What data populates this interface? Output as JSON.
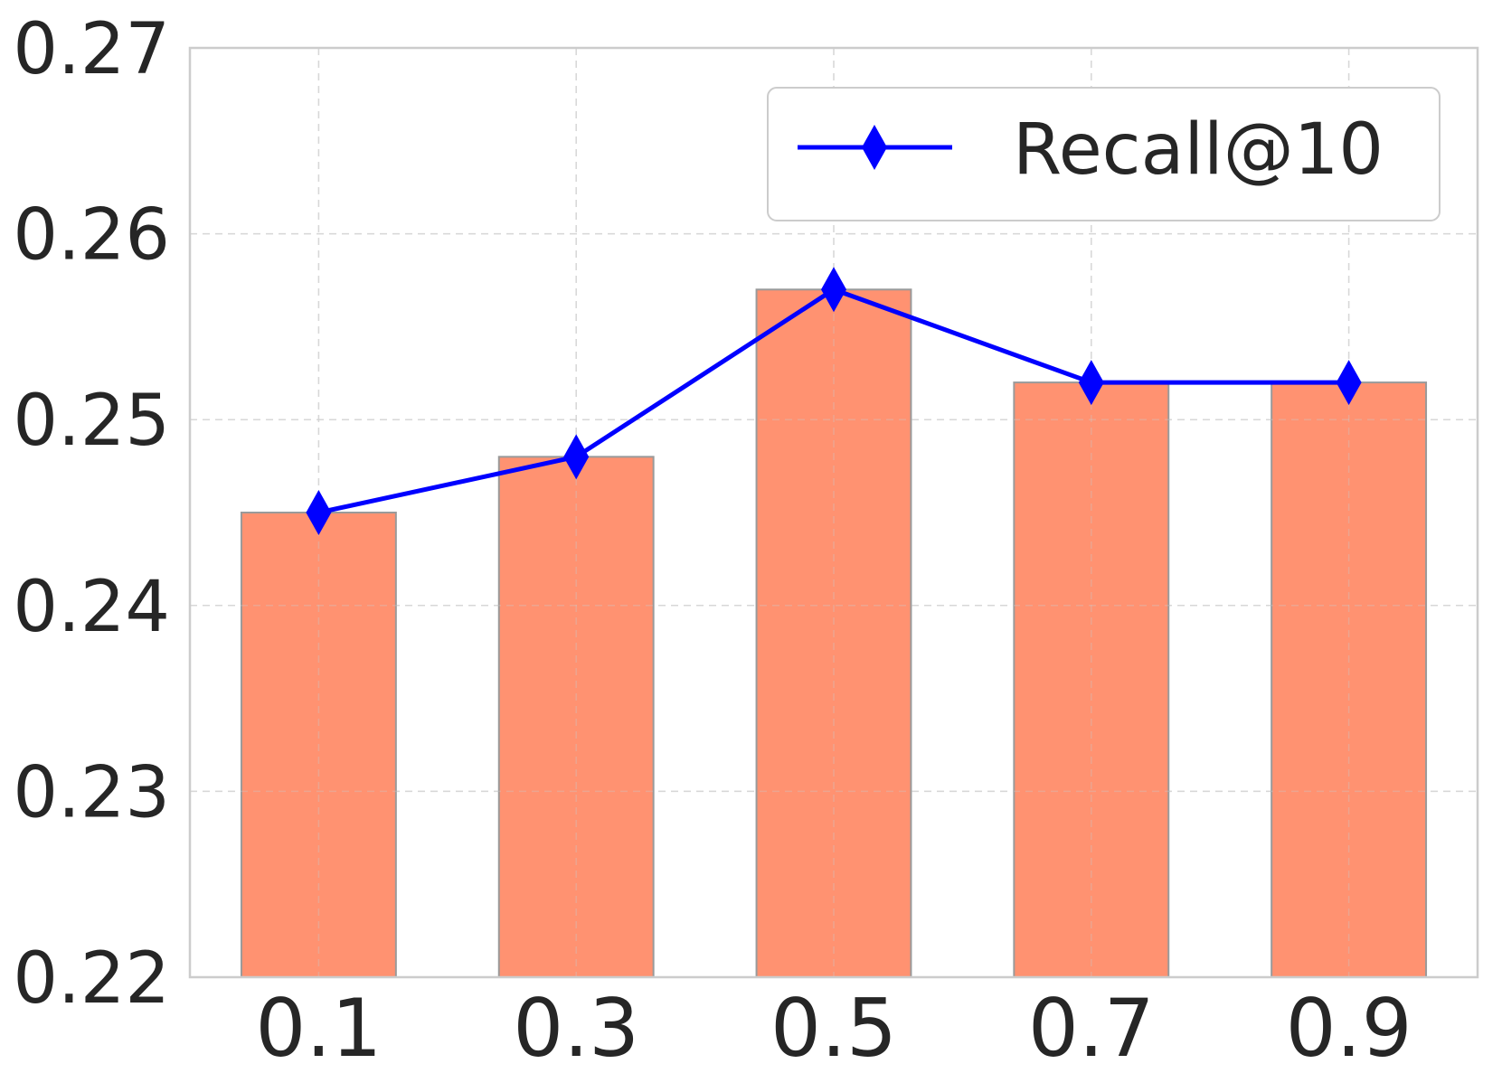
{
  "chart_data": {
    "type": "bar",
    "categories": [
      "0.1",
      "0.3",
      "0.5",
      "0.7",
      "0.9"
    ],
    "series": [
      {
        "name": "Recall@10",
        "render": "line",
        "marker": "diamond",
        "color": "#0000FF",
        "values": [
          0.245,
          0.248,
          0.257,
          0.252,
          0.252
        ]
      }
    ],
    "bars": {
      "color": "#FF8C69",
      "edge_color": "#9A9A9A",
      "values": [
        0.245,
        0.248,
        0.257,
        0.252,
        0.252
      ]
    },
    "title": "",
    "xlabel": "",
    "ylabel": "",
    "ylim": [
      0.22,
      0.27
    ],
    "yticks": [
      "0.22",
      "0.23",
      "0.24",
      "0.25",
      "0.26",
      "0.27"
    ],
    "grid": true,
    "legend": {
      "position": "top-right",
      "entries": [
        "Recall@10"
      ]
    },
    "colors": {
      "axes_edge": "#CCCCCC",
      "grid": "#DDDDDD",
      "text": "#262626"
    }
  }
}
